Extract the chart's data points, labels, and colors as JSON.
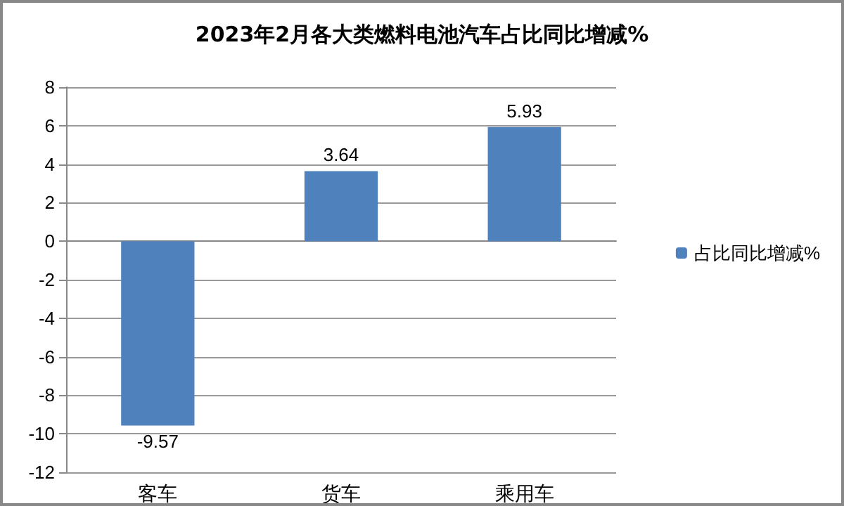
{
  "chart_data": {
    "type": "bar",
    "title": "2023年2月各大类燃料电池汽车占比同比增减%",
    "categories": [
      "客车",
      "货车",
      "乘用车"
    ],
    "series": [
      {
        "name": "占比同比增减%",
        "color": "#4f81bd",
        "values": [
          -9.57,
          3.64,
          5.93
        ]
      }
    ],
    "ylim": [
      -12,
      8
    ],
    "yticks": [
      -12,
      -10,
      -8,
      -6,
      -4,
      -2,
      0,
      2,
      4,
      6,
      8
    ],
    "grid": "y",
    "legend": "right",
    "data_labels": true
  }
}
